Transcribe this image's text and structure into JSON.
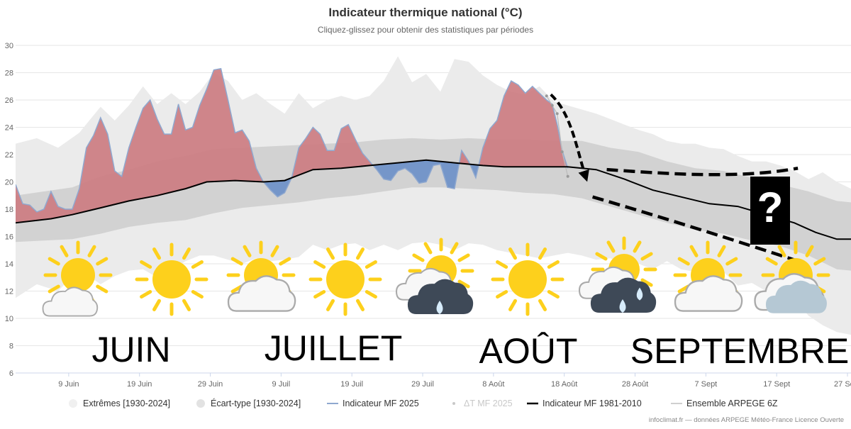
{
  "chart_data": {
    "type": "area",
    "title": "Indicateur thermique national (°C)",
    "subtitle": "Cliquez-glissez pour obtenir des statistiques par périodes",
    "ylim": [
      6,
      30
    ],
    "y_ticks": [
      "6",
      "8",
      "10",
      "12",
      "14",
      "16",
      "18",
      "20",
      "22",
      "24",
      "26",
      "28",
      "30"
    ],
    "x_range": [
      0,
      118
    ],
    "x_ticks": [
      {
        "label": "9 Juin",
        "day": 7.5
      },
      {
        "label": "19 Juin",
        "day": 17.5
      },
      {
        "label": "29 Juin",
        "day": 27.5
      },
      {
        "label": "9 Juil",
        "day": 37.5
      },
      {
        "label": "19 Juil",
        "day": 47.5
      },
      {
        "label": "29 Juil",
        "day": 57.5
      },
      {
        "label": "8 Août",
        "day": 67.5
      },
      {
        "label": "18 Août",
        "day": 77.5
      },
      {
        "label": "28 Août",
        "day": 87.5
      },
      {
        "label": "7 Sept",
        "day": 97.5
      },
      {
        "label": "17 Sept",
        "day": 107.5
      },
      {
        "label": "27 Sept",
        "day": 117.5
      }
    ],
    "grid": true,
    "legend_position": "bottom",
    "legend": [
      {
        "label": "Extrêmes [1930-2024]",
        "color": "#f0f0f0",
        "marker": "dot",
        "dim": false
      },
      {
        "label": "Écart-type [1930-2024]",
        "color": "#e2e2e2",
        "marker": "dot",
        "dim": false
      },
      {
        "label": "Indicateur MF 2025",
        "color": "#8fa8cf",
        "marker": "line",
        "dim": false
      },
      {
        "label": "ΔT MF 2025",
        "color": "#c8c8c8",
        "marker": "smalldot",
        "dim": true
      },
      {
        "label": "Indicateur MF 1981-2010",
        "color": "#000000",
        "marker": "thickline",
        "dim": false
      },
      {
        "label": "Ensemble ARPEGE 6Z",
        "color": "#cfcfcf",
        "marker": "line",
        "dim": false
      }
    ],
    "series": [
      {
        "name": "Indicateur MF 1981-2010",
        "color": "#000000",
        "points": [
          [
            0,
            17.0
          ],
          [
            5,
            17.3
          ],
          [
            8,
            17.6
          ],
          [
            12,
            18.1
          ],
          [
            16,
            18.6
          ],
          [
            20,
            19.0
          ],
          [
            24,
            19.5
          ],
          [
            27,
            20.0
          ],
          [
            31,
            20.1
          ],
          [
            35,
            20.0
          ],
          [
            38,
            20.1
          ],
          [
            42,
            20.9
          ],
          [
            46,
            21.0
          ],
          [
            50,
            21.2
          ],
          [
            54,
            21.4
          ],
          [
            58,
            21.6
          ],
          [
            62,
            21.4
          ],
          [
            66,
            21.2
          ],
          [
            69,
            21.1
          ],
          [
            74,
            21.1
          ],
          [
            78,
            21.1
          ],
          [
            82,
            20.9
          ],
          [
            86,
            20.2
          ],
          [
            90,
            19.4
          ],
          [
            94,
            18.9
          ],
          [
            98,
            18.4
          ],
          [
            102,
            18.2
          ],
          [
            106,
            17.6
          ],
          [
            110,
            17.0
          ],
          [
            113,
            16.3
          ],
          [
            116,
            15.8
          ],
          [
            118,
            15.8
          ]
        ]
      },
      {
        "name": "Indicateur MF 2025",
        "color": "#8fa8cf",
        "points": [
          [
            0,
            19.8
          ],
          [
            1,
            18.4
          ],
          [
            2,
            18.3
          ],
          [
            3,
            17.8
          ],
          [
            4,
            18.0
          ],
          [
            5,
            19.3
          ],
          [
            6,
            18.2
          ],
          [
            7,
            18.0
          ],
          [
            8,
            18.0
          ],
          [
            9,
            19.5
          ],
          [
            10,
            22.5
          ],
          [
            11,
            23.4
          ],
          [
            12,
            24.7
          ],
          [
            13,
            23.5
          ],
          [
            14,
            20.8
          ],
          [
            15,
            20.4
          ],
          [
            16,
            22.5
          ],
          [
            17,
            24.0
          ],
          [
            18,
            25.4
          ],
          [
            19,
            26.0
          ],
          [
            20,
            24.6
          ],
          [
            21,
            23.5
          ],
          [
            22,
            23.5
          ],
          [
            23,
            25.7
          ],
          [
            24,
            23.8
          ],
          [
            25,
            24.0
          ],
          [
            26,
            25.6
          ],
          [
            27,
            26.8
          ],
          [
            28,
            28.2
          ],
          [
            29,
            28.3
          ],
          [
            30,
            26.0
          ],
          [
            31,
            23.6
          ],
          [
            32,
            23.8
          ],
          [
            33,
            23.0
          ],
          [
            34,
            21.0
          ],
          [
            35,
            20.0
          ],
          [
            36,
            19.4
          ],
          [
            37,
            18.9
          ],
          [
            38,
            19.2
          ],
          [
            39,
            20.3
          ],
          [
            40,
            22.5
          ],
          [
            41,
            23.2
          ],
          [
            42,
            24.0
          ],
          [
            43,
            23.5
          ],
          [
            44,
            22.3
          ],
          [
            45,
            22.3
          ],
          [
            46,
            23.9
          ],
          [
            47,
            24.2
          ],
          [
            48,
            23.1
          ],
          [
            49,
            22.1
          ],
          [
            50,
            21.5
          ],
          [
            51,
            20.9
          ],
          [
            52,
            20.2
          ],
          [
            53,
            20.1
          ],
          [
            54,
            20.8
          ],
          [
            55,
            21.0
          ],
          [
            56,
            20.6
          ],
          [
            57,
            19.9
          ],
          [
            58,
            20.0
          ],
          [
            59,
            21.2
          ],
          [
            60,
            21.3
          ],
          [
            61,
            19.6
          ],
          [
            62,
            19.5
          ],
          [
            63,
            22.3
          ],
          [
            64,
            21.5
          ],
          [
            65,
            20.3
          ],
          [
            66,
            22.5
          ],
          [
            67,
            23.9
          ],
          [
            68,
            24.5
          ],
          [
            69,
            26.3
          ],
          [
            70,
            27.4
          ],
          [
            71,
            27.1
          ],
          [
            72,
            26.5
          ],
          [
            73,
            27.0
          ],
          [
            74,
            26.5
          ],
          [
            75,
            26.0
          ],
          [
            75.8,
            25.7
          ],
          [
            76.5,
            24.2
          ],
          [
            77.2,
            22.3
          ],
          [
            78,
            21.0
          ]
        ]
      },
      {
        "name": "Ensemble ARPEGE 6Z",
        "color": "#cfcfcf",
        "points": [
          [
            75,
            26.3
          ],
          [
            75.8,
            25.6
          ],
          [
            76.5,
            25.0
          ],
          [
            77.2,
            22.2
          ],
          [
            78,
            20.4
          ]
        ]
      }
    ],
    "bands": {
      "extremes_upper": [
        [
          0,
          22.8
        ],
        [
          3,
          23.2
        ],
        [
          6,
          22.5
        ],
        [
          9,
          23.6
        ],
        [
          12,
          25.5
        ],
        [
          14,
          24.5
        ],
        [
          16,
          25.6
        ],
        [
          18,
          27.0
        ],
        [
          20,
          25.7
        ],
        [
          22,
          26.5
        ],
        [
          24,
          25.7
        ],
        [
          26,
          26.6
        ],
        [
          28,
          28.0
        ],
        [
          30,
          27.4
        ],
        [
          32,
          26.0
        ],
        [
          34,
          26.5
        ],
        [
          36,
          25.7
        ],
        [
          38,
          25.0
        ],
        [
          40,
          26.5
        ],
        [
          42,
          25.4
        ],
        [
          44,
          26.0
        ],
        [
          46,
          26.3
        ],
        [
          48,
          26.0
        ],
        [
          50,
          26.3
        ],
        [
          52,
          27.4
        ],
        [
          54,
          29.2
        ],
        [
          56,
          27.3
        ],
        [
          58,
          27.9
        ],
        [
          60,
          26.6
        ],
        [
          62,
          29.0
        ],
        [
          64,
          28.8
        ],
        [
          66,
          27.8
        ],
        [
          68,
          27.1
        ],
        [
          70,
          26.6
        ],
        [
          72,
          26.4
        ],
        [
          74,
          27.0
        ],
        [
          76,
          25.9
        ],
        [
          78,
          25.6
        ],
        [
          80,
          25.3
        ],
        [
          82,
          25.0
        ],
        [
          84,
          24.6
        ],
        [
          86,
          24.2
        ],
        [
          88,
          23.8
        ],
        [
          90,
          23.5
        ],
        [
          92,
          23.0
        ],
        [
          94,
          22.8
        ],
        [
          96,
          22.8
        ],
        [
          98,
          22.5
        ],
        [
          100,
          22.4
        ],
        [
          102,
          21.9
        ],
        [
          104,
          21.5
        ],
        [
          106,
          21.5
        ],
        [
          108,
          21.2
        ],
        [
          110,
          20.8
        ],
        [
          112,
          20.2
        ],
        [
          114,
          20.7
        ],
        [
          116,
          20.0
        ],
        [
          118,
          19.5
        ]
      ],
      "extremes_lower": [
        [
          0,
          11.5
        ],
        [
          3,
          12.5
        ],
        [
          6,
          12.0
        ],
        [
          9,
          13.6
        ],
        [
          12,
          12.5
        ],
        [
          14,
          13.1
        ],
        [
          16,
          13.5
        ],
        [
          18,
          13.6
        ],
        [
          20,
          13.0
        ],
        [
          22,
          13.5
        ],
        [
          24,
          14.2
        ],
        [
          26,
          14.6
        ],
        [
          28,
          14.6
        ],
        [
          30,
          14.3
        ],
        [
          32,
          14.0
        ],
        [
          34,
          14.4
        ],
        [
          36,
          14.2
        ],
        [
          38,
          14.3
        ],
        [
          40,
          14.5
        ],
        [
          42,
          15.4
        ],
        [
          44,
          15.0
        ],
        [
          46,
          15.4
        ],
        [
          48,
          15.5
        ],
        [
          50,
          15.0
        ],
        [
          52,
          15.4
        ],
        [
          54,
          15.0
        ],
        [
          56,
          15.5
        ],
        [
          58,
          15.6
        ],
        [
          60,
          15.4
        ],
        [
          62,
          15.0
        ],
        [
          64,
          15.5
        ],
        [
          66,
          15.4
        ],
        [
          68,
          15.0
        ],
        [
          70,
          14.8
        ],
        [
          72,
          14.6
        ],
        [
          74,
          14.4
        ],
        [
          76,
          14.6
        ],
        [
          78,
          14.8
        ],
        [
          80,
          14.6
        ],
        [
          82,
          14.3
        ],
        [
          84,
          14.4
        ],
        [
          86,
          14.0
        ],
        [
          88,
          14.0
        ],
        [
          90,
          13.6
        ],
        [
          92,
          14.2
        ],
        [
          94,
          13.6
        ],
        [
          96,
          13.4
        ],
        [
          98,
          13.6
        ],
        [
          100,
          13.4
        ],
        [
          102,
          12.4
        ],
        [
          104,
          12.6
        ],
        [
          106,
          12.0
        ],
        [
          108,
          11.0
        ],
        [
          110,
          11.4
        ],
        [
          112,
          10.2
        ],
        [
          114,
          9.5
        ],
        [
          116,
          9.0
        ],
        [
          118,
          8.8
        ]
      ],
      "stddev_upper": [
        [
          0,
          19.0
        ],
        [
          4,
          19.3
        ],
        [
          8,
          19.6
        ],
        [
          12,
          20.4
        ],
        [
          16,
          20.9
        ],
        [
          20,
          21.5
        ],
        [
          24,
          21.9
        ],
        [
          28,
          22.4
        ],
        [
          32,
          22.5
        ],
        [
          36,
          22.6
        ],
        [
          40,
          22.7
        ],
        [
          44,
          22.8
        ],
        [
          48,
          22.9
        ],
        [
          52,
          23.1
        ],
        [
          56,
          23.2
        ],
        [
          60,
          23.1
        ],
        [
          64,
          23.2
        ],
        [
          68,
          23.1
        ],
        [
          72,
          23.1
        ],
        [
          76,
          23.0
        ],
        [
          80,
          23.0
        ],
        [
          84,
          22.5
        ],
        [
          88,
          22.2
        ],
        [
          92,
          21.5
        ],
        [
          96,
          21.0
        ],
        [
          100,
          20.8
        ],
        [
          104,
          20.3
        ],
        [
          108,
          19.8
        ],
        [
          112,
          19.3
        ],
        [
          116,
          18.6
        ],
        [
          118,
          18.5
        ]
      ],
      "stddev_lower": [
        [
          0,
          15.6
        ],
        [
          4,
          15.7
        ],
        [
          8,
          15.8
        ],
        [
          12,
          16.2
        ],
        [
          16,
          16.7
        ],
        [
          20,
          17.0
        ],
        [
          24,
          17.2
        ],
        [
          28,
          17.7
        ],
        [
          32,
          18.1
        ],
        [
          36,
          18.3
        ],
        [
          40,
          18.5
        ],
        [
          44,
          18.8
        ],
        [
          48,
          19.0
        ],
        [
          52,
          19.3
        ],
        [
          56,
          19.6
        ],
        [
          60,
          19.6
        ],
        [
          64,
          19.5
        ],
        [
          68,
          19.4
        ],
        [
          72,
          19.2
        ],
        [
          76,
          19.1
        ],
        [
          80,
          18.8
        ],
        [
          84,
          18.2
        ],
        [
          88,
          17.6
        ],
        [
          92,
          17.0
        ],
        [
          96,
          16.5
        ],
        [
          100,
          16.2
        ],
        [
          104,
          15.7
        ],
        [
          108,
          15.3
        ],
        [
          112,
          14.6
        ],
        [
          116,
          13.6
        ],
        [
          118,
          13.5
        ]
      ]
    },
    "annotations": {
      "months": [
        "JUIN",
        "JUILLET",
        "AOÛT",
        "SEPTEMBRE"
      ],
      "question_mark": "?",
      "weather_icons": [
        "sun-cloud",
        "sun",
        "sun-cloud",
        "sun",
        "sun-rain",
        "sun",
        "sun-rain",
        "sun-cloud",
        "sun-cloud-grey"
      ]
    },
    "credit": "infoclimat.fr — données ARPEGE Météo-France Licence Ouverte"
  }
}
